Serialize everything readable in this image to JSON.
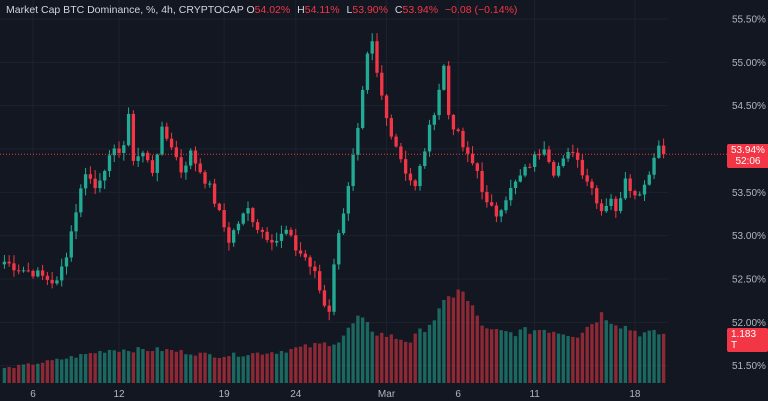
{
  "legend": {
    "symbol": "Market Cap BTC Dominance, %, 4h, CRYPTOCAP",
    "o_label": "O",
    "o_value": "54.02%",
    "h_label": "H",
    "h_value": "54.11%",
    "l_label": "L",
    "l_value": "53.90%",
    "c_label": "C",
    "c_value": "53.94%",
    "change": "−0.08 (−0.14%)"
  },
  "price_tag": {
    "price": "53.94%",
    "countdown": "52:06"
  },
  "volume_tag": "1.183 T",
  "colors": {
    "up": "#22ab94",
    "down": "#f23645",
    "background": "#131722",
    "grid": "#1e222d",
    "text": "#b2b5be"
  },
  "chart_data": {
    "type": "candlestick",
    "timeframe": "4h",
    "y_axis": {
      "min": 51.3,
      "max": 55.65,
      "ticks": [
        51.5,
        52.0,
        52.5,
        53.0,
        53.5,
        54.0,
        54.5,
        55.0,
        55.5
      ],
      "tick_labels": [
        "51.50%",
        "52.00%",
        "52.50%",
        "53.00%",
        "53.50%",
        "54.00%",
        "54.50%",
        "55.00%",
        "55.50%"
      ]
    },
    "x_axis": {
      "ticks": [
        {
          "index": 6,
          "label": "6"
        },
        {
          "index": 24,
          "label": "12"
        },
        {
          "index": 46,
          "label": "19"
        },
        {
          "index": 61,
          "label": "24"
        },
        {
          "index": 80,
          "label": "Mar"
        },
        {
          "index": 95,
          "label": "6"
        },
        {
          "index": 111,
          "label": "11"
        },
        {
          "index": 132,
          "label": "18"
        }
      ]
    },
    "current_price": 53.94,
    "price_path": [
      [
        0,
        52.7
      ],
      [
        3,
        52.62
      ],
      [
        6,
        52.58
      ],
      [
        9,
        52.5
      ],
      [
        11,
        52.45
      ],
      [
        13,
        52.8
      ],
      [
        15,
        53.3
      ],
      [
        17,
        53.75
      ],
      [
        19,
        53.55
      ],
      [
        21,
        53.8
      ],
      [
        23,
        53.95
      ],
      [
        25,
        54.05
      ],
      [
        26,
        54.35
      ],
      [
        27,
        53.9
      ],
      [
        29,
        53.95
      ],
      [
        31,
        53.75
      ],
      [
        33,
        54.2
      ],
      [
        35,
        54.05
      ],
      [
        37,
        53.75
      ],
      [
        39,
        53.95
      ],
      [
        41,
        53.75
      ],
      [
        43,
        53.55
      ],
      [
        45,
        53.25
      ],
      [
        47,
        52.95
      ],
      [
        49,
        53.15
      ],
      [
        51,
        53.3
      ],
      [
        53,
        53.1
      ],
      [
        55,
        53.0
      ],
      [
        57,
        52.95
      ],
      [
        59,
        53.05
      ],
      [
        61,
        52.85
      ],
      [
        63,
        52.75
      ],
      [
        65,
        52.55
      ],
      [
        67,
        52.2
      ],
      [
        68,
        52.15
      ],
      [
        69,
        52.7
      ],
      [
        71,
        53.3
      ],
      [
        73,
        53.9
      ],
      [
        74,
        54.2
      ],
      [
        76,
        55.05
      ],
      [
        77,
        55.2
      ],
      [
        78,
        54.85
      ],
      [
        80,
        54.35
      ],
      [
        82,
        54.05
      ],
      [
        84,
        53.75
      ],
      [
        86,
        53.55
      ],
      [
        88,
        54.0
      ],
      [
        90,
        54.45
      ],
      [
        92,
        54.95
      ],
      [
        93,
        54.4
      ],
      [
        95,
        54.15
      ],
      [
        97,
        53.9
      ],
      [
        99,
        53.75
      ],
      [
        101,
        53.35
      ],
      [
        103,
        53.25
      ],
      [
        105,
        53.45
      ],
      [
        107,
        53.6
      ],
      [
        109,
        53.75
      ],
      [
        111,
        53.9
      ],
      [
        113,
        54.05
      ],
      [
        115,
        53.75
      ],
      [
        117,
        53.85
      ],
      [
        119,
        54.0
      ],
      [
        121,
        53.75
      ],
      [
        123,
        53.55
      ],
      [
        125,
        53.3
      ],
      [
        127,
        53.45
      ],
      [
        128,
        53.25
      ],
      [
        130,
        53.7
      ],
      [
        132,
        53.45
      ],
      [
        134,
        53.6
      ],
      [
        136,
        53.9
      ],
      [
        137,
        54.05
      ],
      [
        138,
        53.94
      ]
    ],
    "volume": {
      "max": 2.4,
      "latest": 1.183,
      "segments": [
        [
          0,
          0.35
        ],
        [
          11,
          0.55
        ],
        [
          22,
          0.8
        ],
        [
          33,
          0.8
        ],
        [
          45,
          0.65
        ],
        [
          57,
          0.75
        ],
        [
          70,
          1.0
        ],
        [
          74,
          1.55
        ],
        [
          78,
          1.2
        ],
        [
          85,
          1.0
        ],
        [
          90,
          1.55
        ],
        [
          95,
          2.3
        ],
        [
          101,
          1.25
        ],
        [
          106,
          1.2
        ],
        [
          113,
          1.3
        ],
        [
          120,
          1.15
        ],
        [
          125,
          1.65
        ],
        [
          129,
          1.4
        ],
        [
          133,
          1.2
        ],
        [
          138,
          1.18
        ]
      ]
    }
  }
}
